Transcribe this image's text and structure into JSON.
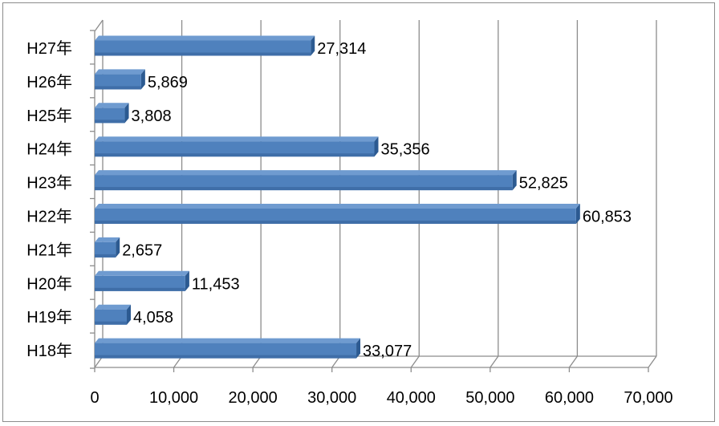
{
  "chart_data": {
    "type": "bar",
    "orientation": "horizontal",
    "style": "3d",
    "categories": [
      "H27年",
      "H26年",
      "H25年",
      "H24年",
      "H23年",
      "H22年",
      "H21年",
      "H20年",
      "H19年",
      "H18年"
    ],
    "values": [
      27314,
      5869,
      3808,
      35356,
      52825,
      60853,
      2657,
      11453,
      4058,
      33077
    ],
    "data_labels": [
      "27,314",
      "5,869",
      "3,808",
      "35,356",
      "52,825",
      "60,853",
      "2,657",
      "11,453",
      "4,058",
      "33,077"
    ],
    "x_ticks": [
      "0",
      "10,000",
      "20,000",
      "30,000",
      "40,000",
      "50,000",
      "60,000",
      "70,000"
    ],
    "xlim": [
      0,
      70000
    ],
    "title": "",
    "xlabel": "",
    "ylabel": "",
    "grid": true,
    "legend": "none",
    "colors": {
      "bar_front": "#4f81bd",
      "bar_top": "#6f9bd0",
      "bar_side": "#2c5a91",
      "grid": "#8c8c8c"
    }
  }
}
